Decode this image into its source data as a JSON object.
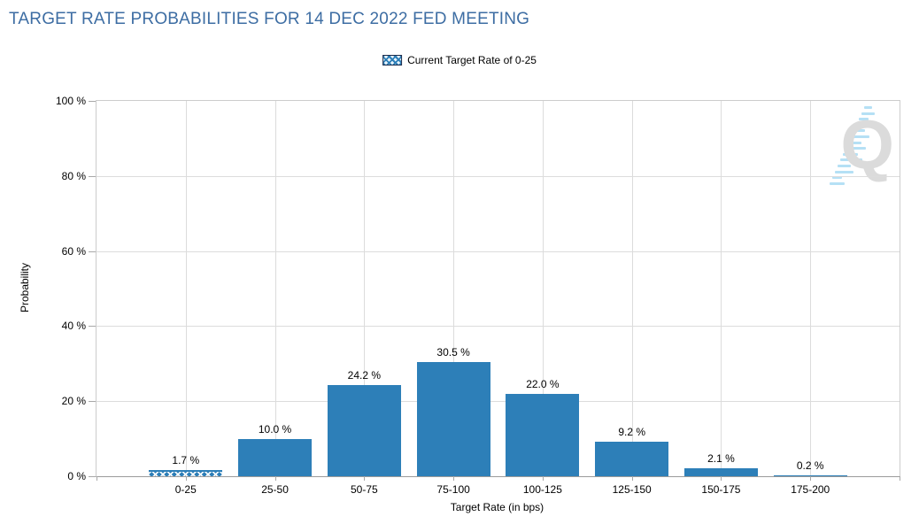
{
  "chart_data": {
    "type": "bar",
    "title": "TARGET RATE PROBABILITIES FOR 14 DEC 2022 FED MEETING",
    "categories": [
      "0-25",
      "25-50",
      "50-75",
      "75-100",
      "100-125",
      "125-150",
      "150-175",
      "175-200"
    ],
    "values": [
      1.7,
      10.0,
      24.2,
      30.5,
      22.0,
      9.2,
      2.1,
      0.2
    ],
    "bar_labels": [
      "1.7 %",
      "10.0 %",
      "24.2 %",
      "30.5 %",
      "22.0 %",
      "9.2 %",
      "2.1 %",
      "0.2 %"
    ],
    "highlighted_category": "0-25",
    "highlight_style": "crosshatch",
    "xlabel": "Target Rate (in bps)",
    "ylabel": "Probability",
    "ylim": [
      0,
      100
    ],
    "ytick_values": [
      0,
      20,
      40,
      60,
      80,
      100
    ],
    "ytick_labels": [
      "0 %",
      "20 %",
      "40 %",
      "60 %",
      "80 %",
      "100 %"
    ],
    "grid": true,
    "legend_position": "top-center",
    "legend": {
      "label": "Current Target Rate of 0-25",
      "swatch": "blue-crosshatch"
    },
    "bar_color": "#2d7fb8",
    "title_color": "#3d6da3"
  },
  "watermark": {
    "letter": "Q"
  }
}
